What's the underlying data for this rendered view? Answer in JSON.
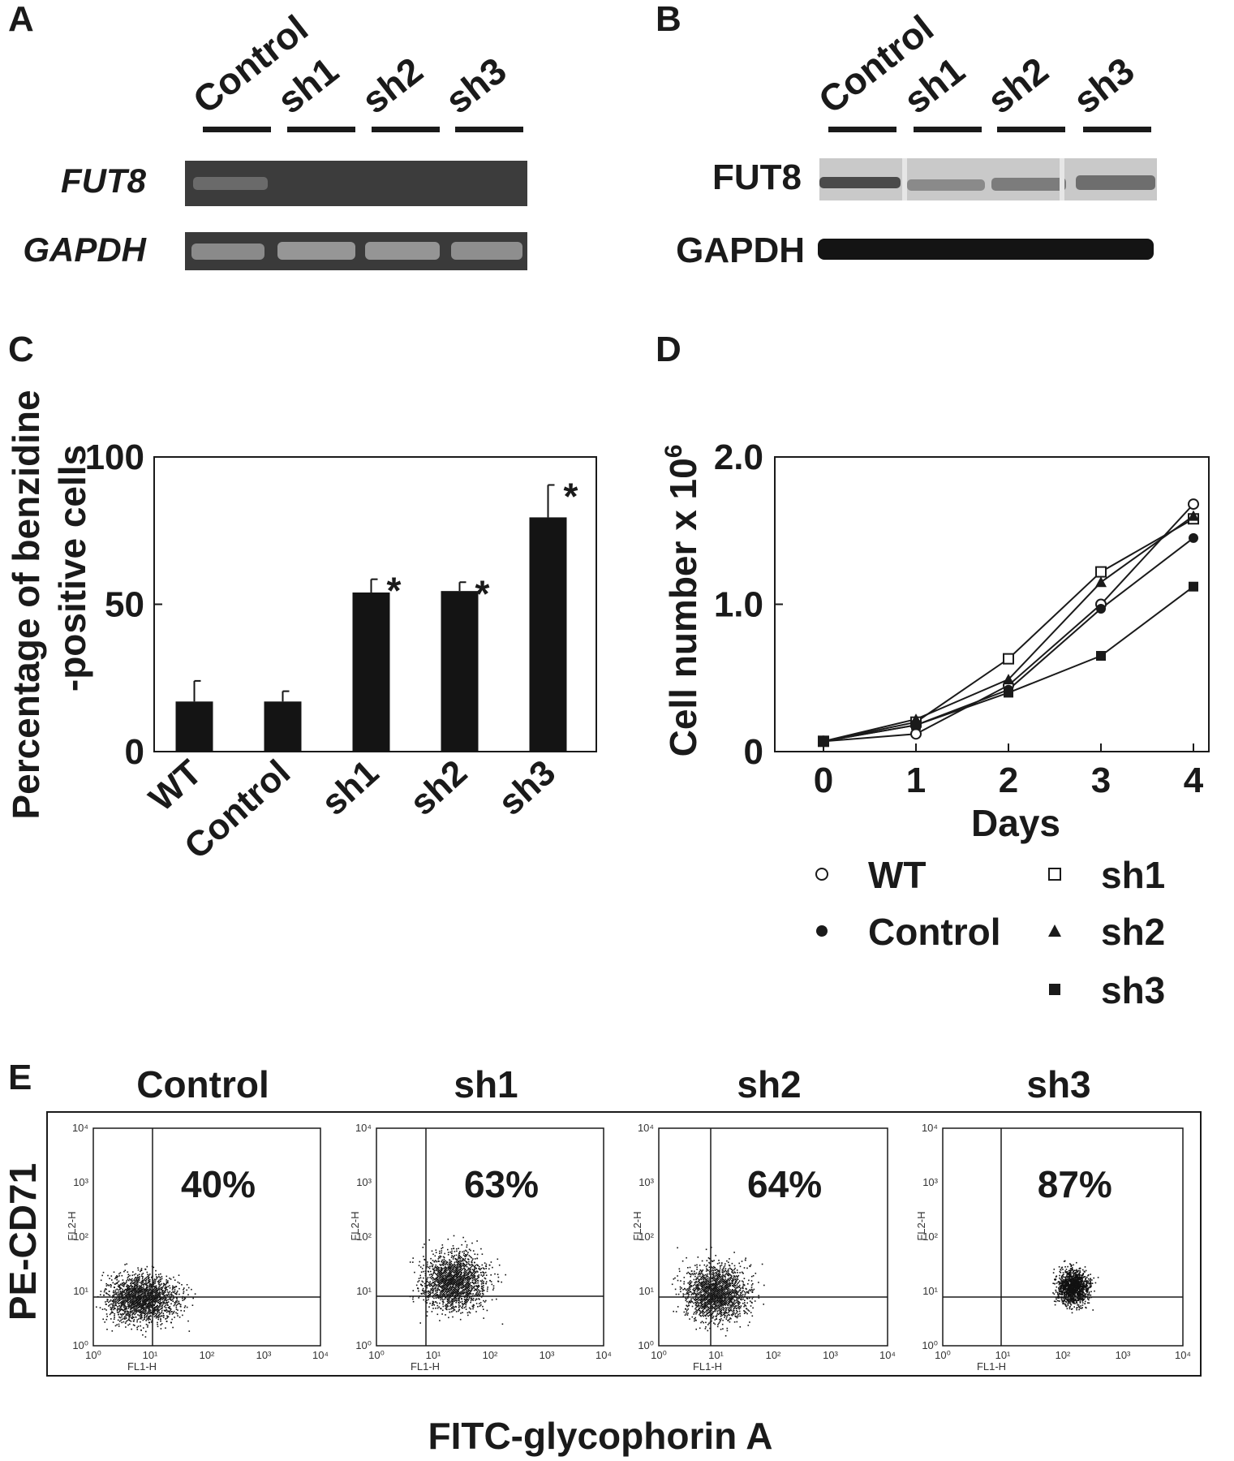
{
  "panels": {
    "A": {
      "letter": "A",
      "lanes": [
        "Control",
        "sh1",
        "sh2",
        "sh3"
      ],
      "genes": [
        "FUT8",
        "GAPDH"
      ]
    },
    "B": {
      "letter": "B",
      "lanes": [
        "Control",
        "sh1",
        "sh2",
        "sh3"
      ],
      "proteins": [
        "FUT8",
        "GAPDH"
      ]
    },
    "C": {
      "letter": "C"
    },
    "D": {
      "letter": "D"
    },
    "E": {
      "letter": "E",
      "plots": [
        {
          "title": "Control",
          "percent": "40%"
        },
        {
          "title": "sh1",
          "percent": "63%"
        },
        {
          "title": "sh2",
          "percent": "64%"
        },
        {
          "title": "sh3",
          "percent": "87%"
        }
      ],
      "y_axis_label": "PE-CD71",
      "x_axis_label": "FITC-glycophorin A",
      "inner_x_label": "FL1-H",
      "inner_y_label": "FL2-H",
      "log_ticks": [
        "10⁰",
        "10¹",
        "10²",
        "10³",
        "10⁴"
      ]
    }
  },
  "chart_data": [
    {
      "type": "bar",
      "panel": "C",
      "categories": [
        "WT",
        "Control",
        "sh1",
        "sh2",
        "sh3"
      ],
      "values": [
        17,
        17,
        54,
        54.5,
        79.5
      ],
      "errors": [
        7,
        3.5,
        4.5,
        3,
        11
      ],
      "significant": [
        false,
        false,
        true,
        true,
        true
      ],
      "significance_marker": "*",
      "ylabel": "Percentage of benzidine -positive cells",
      "ylabel_lines": [
        "Percentage of benzidine",
        "-positive cells"
      ],
      "ylim": [
        0,
        100
      ],
      "yticks": [
        "0",
        "50",
        "100"
      ]
    },
    {
      "type": "line",
      "panel": "D",
      "x": [
        0,
        1,
        2,
        3,
        4
      ],
      "xlabel": "Days",
      "ylabel": "Cell number x 10",
      "ylabel_superscript": "6",
      "ylim": [
        0,
        2.0
      ],
      "yticks": [
        "0",
        "1.0",
        "2.0"
      ],
      "series": [
        {
          "name": "WT",
          "marker": "open-circle",
          "values": [
            0.07,
            0.12,
            0.45,
            1.0,
            1.68
          ]
        },
        {
          "name": "Control",
          "marker": "filled-circle",
          "values": [
            0.07,
            0.18,
            0.42,
            0.97,
            1.45
          ]
        },
        {
          "name": "sh1",
          "marker": "open-square",
          "values": [
            0.07,
            0.2,
            0.63,
            1.22,
            1.58
          ]
        },
        {
          "name": "sh2",
          "marker": "filled-triangle",
          "values": [
            0.07,
            0.22,
            0.49,
            1.15,
            1.6
          ]
        },
        {
          "name": "sh3",
          "marker": "filled-square",
          "values": [
            0.07,
            0.18,
            0.4,
            0.65,
            1.12
          ]
        }
      ],
      "legend_placement": "bottom"
    }
  ]
}
